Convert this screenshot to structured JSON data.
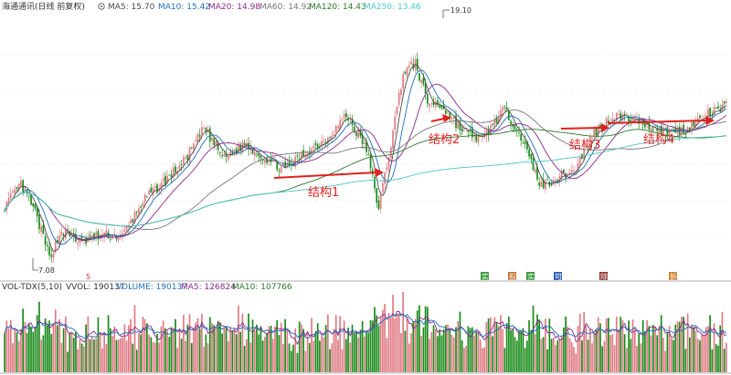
{
  "colors": {
    "up": "#e07b83",
    "down": "#1a8a1a",
    "ma5": "#4a4a4a",
    "ma10": "#1f6fb8",
    "ma20": "#8a2a8a",
    "ma60": "#777777",
    "ma120": "#2a7a2a",
    "ma250": "#4fc4c8",
    "annotation": "#e02020",
    "separator": "#999999",
    "grid": "#d8d8d8"
  },
  "header": {
    "stock_name": "海通通讯(日线 前复权)",
    "ma5": "MA5: 15.70",
    "ma10": "MA10: 15.42",
    "ma20": "MA20: 14.98",
    "ma60": "MA60: 14.92",
    "ma120": "MA120: 14.43",
    "ma250": "MA250: 13.46"
  },
  "volume_header": {
    "indicator": "VOL-TDX(5,10)",
    "vvol": "VVOL: 190137",
    "volume": "VOLUME: 190137",
    "ma5": "MA5: 126824",
    "ma10": "MA10: 107766"
  },
  "markers": [
    "5",
    "实",
    "股",
    "实",
    "可",
    "除",
    "折"
  ],
  "chart_data": {
    "type": "candlestick",
    "title": "海通通讯(日线 前复权)",
    "price_range": [
      6.6,
      20.2
    ],
    "annotations": {
      "high_label": "19.10",
      "low_label": "7.08",
      "structures": [
        "结构1",
        "结构2",
        "结构3",
        "结构4"
      ]
    },
    "anchors": [
      [
        0,
        10.0
      ],
      [
        8,
        11.2
      ],
      [
        15,
        9.7
      ],
      [
        22,
        7.3
      ],
      [
        28,
        8.7
      ],
      [
        38,
        8.1
      ],
      [
        48,
        8.5
      ],
      [
        58,
        8.4
      ],
      [
        68,
        10.3
      ],
      [
        78,
        11.3
      ],
      [
        88,
        12.4
      ],
      [
        98,
        14.2
      ],
      [
        108,
        12.6
      ],
      [
        118,
        13.4
      ],
      [
        128,
        12.6
      ],
      [
        138,
        12.0
      ],
      [
        148,
        12.9
      ],
      [
        158,
        13.6
      ],
      [
        168,
        14.9
      ],
      [
        178,
        13.1
      ],
      [
        184,
        9.9
      ],
      [
        190,
        13.4
      ],
      [
        196,
        17.2
      ],
      [
        202,
        17.7
      ],
      [
        208,
        15.6
      ],
      [
        215,
        15.4
      ],
      [
        225,
        14.1
      ],
      [
        235,
        13.6
      ],
      [
        245,
        15.2
      ],
      [
        252,
        14.3
      ],
      [
        258,
        12.6
      ],
      [
        264,
        11.1
      ],
      [
        272,
        11.6
      ],
      [
        280,
        11.9
      ],
      [
        290,
        14.0
      ],
      [
        300,
        14.9
      ],
      [
        312,
        14.6
      ],
      [
        325,
        14.0
      ],
      [
        335,
        14.1
      ],
      [
        345,
        14.9
      ],
      [
        355,
        15.4
      ]
    ],
    "candle_count": 356,
    "ma_periods": [
      5,
      10,
      20,
      60,
      120,
      250
    ]
  }
}
